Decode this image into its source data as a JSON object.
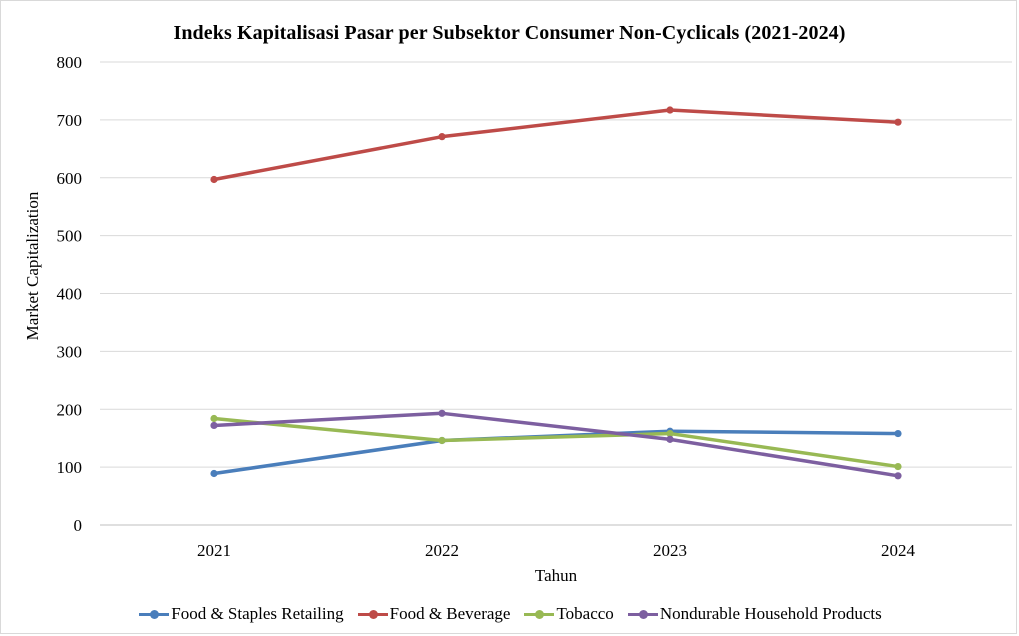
{
  "chart_data": {
    "type": "line",
    "title": "Indeks Kapitalisasi Pasar per Subsektor Consumer Non-Cyclicals (2021-2024)",
    "xlabel": "Tahun",
    "ylabel": "Market Capitalization",
    "categories": [
      "2021",
      "2022",
      "2023",
      "2024"
    ],
    "ylim": [
      0,
      800
    ],
    "yticks": [
      "0",
      "100",
      "200",
      "300",
      "400",
      "500",
      "600",
      "700",
      "800"
    ],
    "grid": true,
    "legend_position": "bottom",
    "series": [
      {
        "name": "Food & Staples Retailing",
        "color": "#4a7ebb",
        "values": [
          89,
          146,
          162,
          158
        ]
      },
      {
        "name": "Food & Beverage",
        "color": "#be4b48",
        "values": [
          597,
          671,
          717,
          696
        ]
      },
      {
        "name": "Tobacco",
        "color": "#98b954",
        "values": [
          184,
          146,
          158,
          101
        ]
      },
      {
        "name": "Nondurable Household Products",
        "color": "#7d5fa0",
        "values": [
          172,
          193,
          148,
          85
        ]
      }
    ]
  }
}
